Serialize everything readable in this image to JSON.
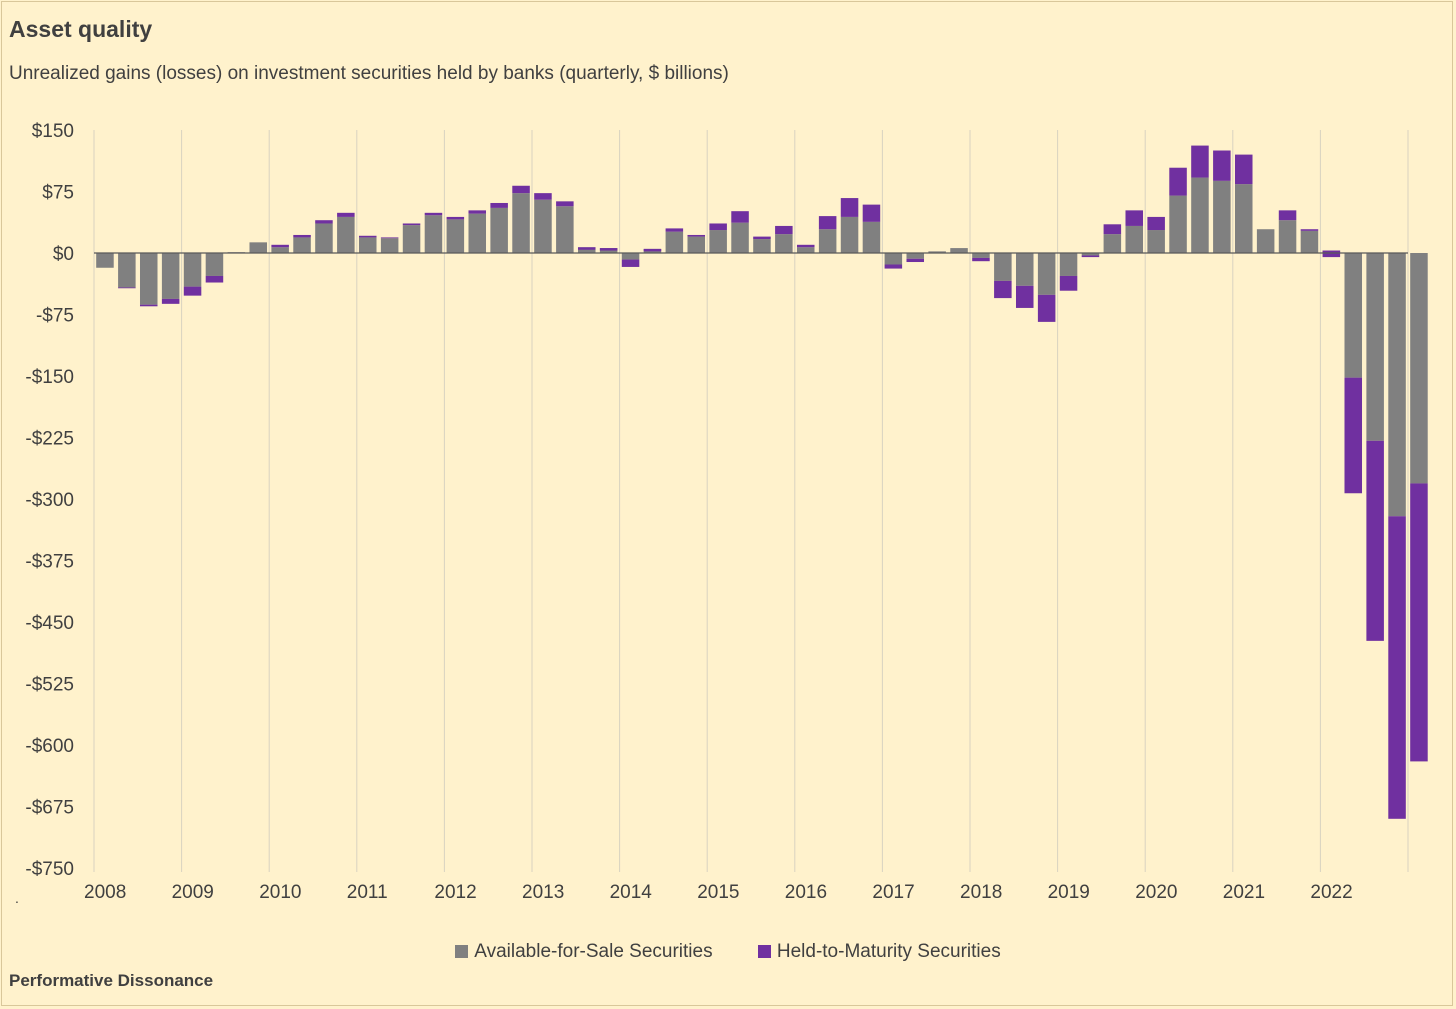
{
  "title": "Asset quality",
  "subtitle": "Unrealized gains (losses) on investment securities held by banks (quarterly, $ billions)",
  "source": "Performative Dissonance",
  "colors": {
    "background": "#fff2cc",
    "afs": "#808080",
    "htm": "#7030a0",
    "text": "#404040",
    "grid": "#d9d2c0",
    "zero_axis": "#595959"
  },
  "chart_data": {
    "type": "bar",
    "stacked": true,
    "grid": "vertical gridlines at year boundaries",
    "legend": "bottom-center",
    "ylim": [
      -750,
      150
    ],
    "yticks": [
      150,
      75,
      0,
      -75,
      -150,
      -225,
      -300,
      -375,
      -450,
      -525,
      -600,
      -675,
      -750
    ],
    "ytick_labels": [
      "$150",
      "$75",
      "$0",
      "-$75",
      "-$150",
      "-$225",
      "-$300",
      "-$375",
      "-$450",
      "-$525",
      "-$600",
      "-$675",
      "-$750"
    ],
    "x_year_labels": [
      "2008",
      "2009",
      "2010",
      "2011",
      "2012",
      "2013",
      "2014",
      "2015",
      "2016",
      "2017",
      "2018",
      "2019",
      "2020",
      "2021",
      "2022"
    ],
    "quarters_per_year": 4,
    "series": [
      {
        "name": "Available-for-Sale Securities",
        "color": "#808080",
        "values": [
          -18,
          -42,
          -63,
          -56,
          -41,
          -28,
          1,
          13,
          7,
          19,
          36,
          44,
          19,
          18,
          34,
          46,
          41,
          48,
          55,
          73,
          65,
          57,
          7,
          6,
          -8,
          5,
          26,
          20,
          28,
          37,
          17,
          23,
          7,
          29,
          44,
          38,
          -14,
          -7,
          2,
          6,
          -6,
          -34,
          -40,
          -51,
          -28,
          -3,
          23,
          33,
          28,
          70,
          92,
          88,
          84,
          29,
          40,
          27,
          3,
          -152,
          -229,
          -321,
          -281
        ]
      },
      {
        "name": "Held-to-Maturity Securities",
        "color": "#7030a0",
        "values": [
          0,
          -1,
          -2,
          -6,
          -11,
          -8,
          0,
          0,
          3,
          3,
          4,
          5,
          2,
          1,
          2,
          3,
          3,
          4,
          6,
          9,
          8,
          6,
          -3,
          -3,
          -9,
          -3,
          4,
          2,
          8,
          14,
          3,
          10,
          3,
          16,
          23,
          21,
          -5,
          -4,
          0,
          0,
          -4,
          -21,
          -27,
          -33,
          -18,
          -2,
          12,
          19,
          16,
          34,
          39,
          37,
          36,
          0,
          12,
          2,
          -8,
          -141,
          -244,
          -369,
          -339
        ]
      }
    ]
  }
}
